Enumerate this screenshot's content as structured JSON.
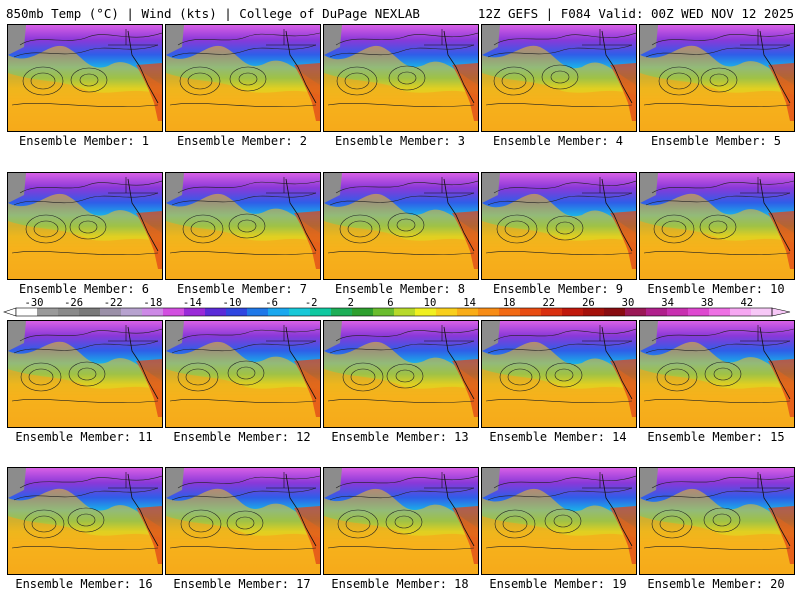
{
  "header": {
    "left": "850mb Temp (°C) | Wind (kts) | College of DuPage NEXLAB",
    "right": "12Z GEFS | F084 Valid: 00Z WED NOV 12 2025"
  },
  "panels": [
    {
      "label": "Ensemble Member: 1"
    },
    {
      "label": "Ensemble Member: 2"
    },
    {
      "label": "Ensemble Member: 3"
    },
    {
      "label": "Ensemble Member: 4"
    },
    {
      "label": "Ensemble Member: 5"
    },
    {
      "label": "Ensemble Member: 6"
    },
    {
      "label": "Ensemble Member: 7"
    },
    {
      "label": "Ensemble Member: 8"
    },
    {
      "label": "Ensemble Member: 9"
    },
    {
      "label": "Ensemble Member: 10"
    },
    {
      "label": "Ensemble Member: 11"
    },
    {
      "label": "Ensemble Member: 12"
    },
    {
      "label": "Ensemble Member: 13"
    },
    {
      "label": "Ensemble Member: 14"
    },
    {
      "label": "Ensemble Member: 15"
    },
    {
      "label": "Ensemble Member: 16"
    },
    {
      "label": "Ensemble Member: 17"
    },
    {
      "label": "Ensemble Member: 18"
    },
    {
      "label": "Ensemble Member: 19"
    },
    {
      "label": "Ensemble Member: 20"
    }
  ],
  "colorbar": {
    "ticks": [
      "-30",
      "-26",
      "-22",
      "-18",
      "-14",
      "-10",
      "-6",
      "-2",
      "2",
      "6",
      "10",
      "14",
      "18",
      "22",
      "26",
      "30",
      "34",
      "38",
      "42"
    ],
    "colors": [
      "#ffffff",
      "#9a9a9a",
      "#8a8a8a",
      "#7a7a7a",
      "#9b90a8",
      "#b7a2cf",
      "#cd89e6",
      "#d24fe0",
      "#9a2ad8",
      "#5a2bd8",
      "#2f46e0",
      "#1f78e8",
      "#1aa8ef",
      "#18c8d8",
      "#10c8a0",
      "#1eae57",
      "#2e9f2e",
      "#6abc2e",
      "#b7d92a",
      "#f0f020",
      "#f8cf1c",
      "#f9ad18",
      "#f78c16",
      "#f26a14",
      "#e84c12",
      "#d93010",
      "#c0180c",
      "#a4100a",
      "#880c10",
      "#9a1856",
      "#b0208c",
      "#c830b0",
      "#de48d0",
      "#ee70e4",
      "#f6a8f2",
      "#f7c8f7"
    ]
  }
}
